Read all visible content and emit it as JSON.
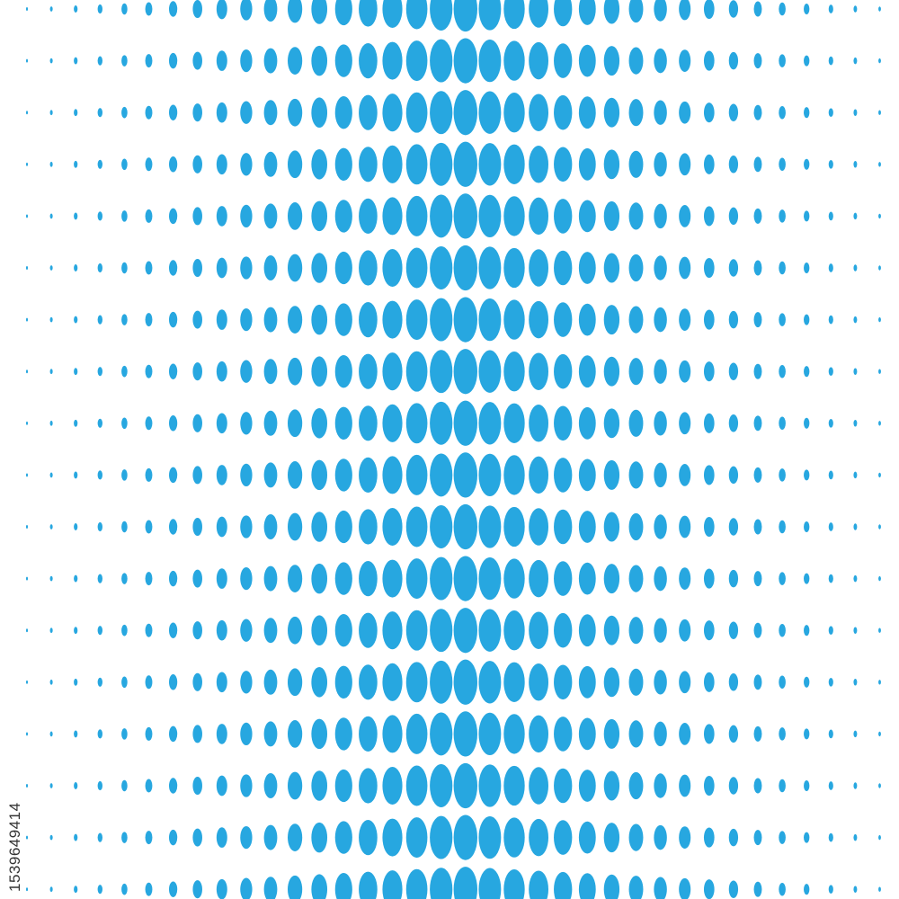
{
  "image_id": "1539649414"
}
